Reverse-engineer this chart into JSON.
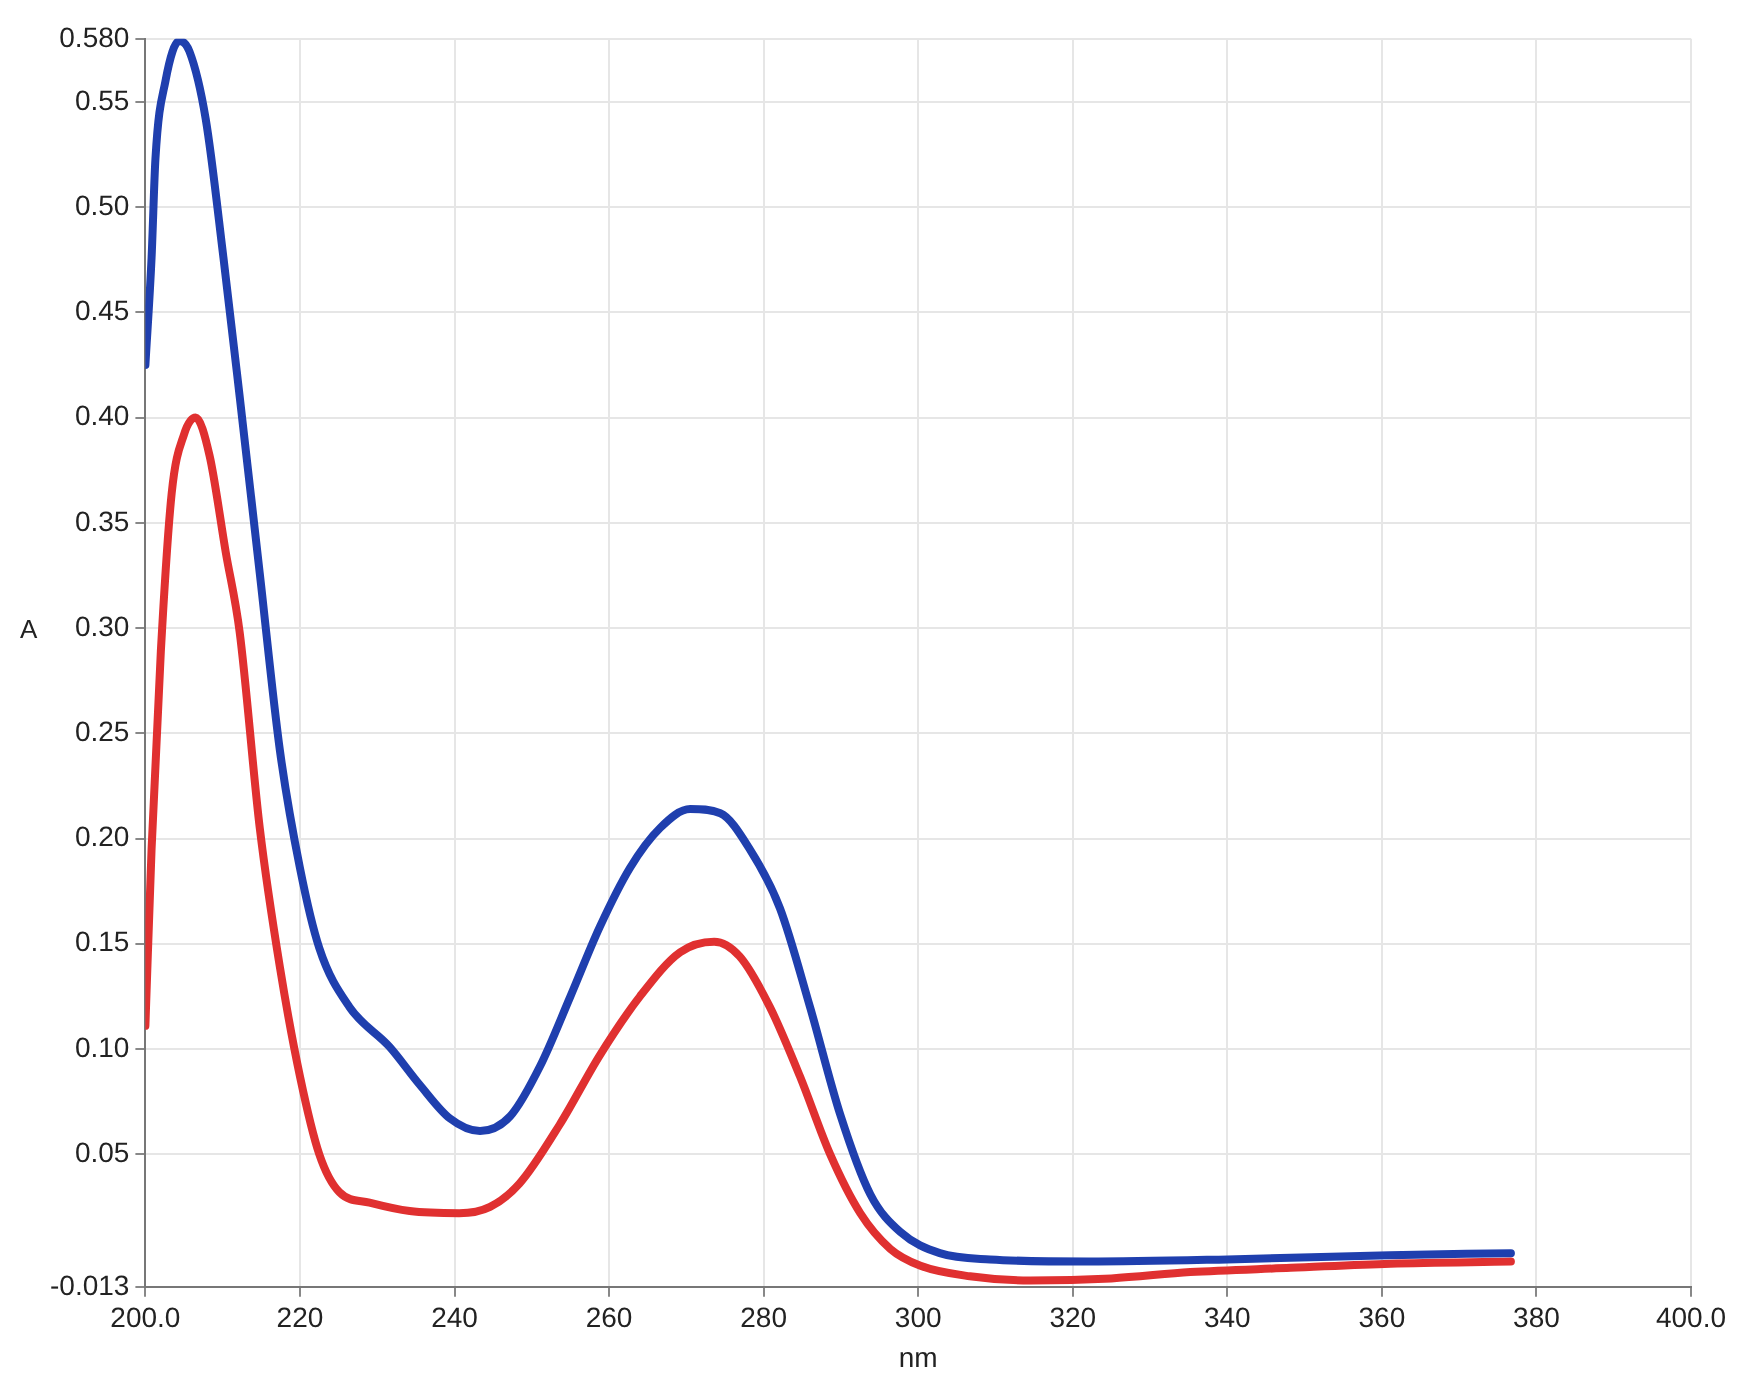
{
  "chart_data": {
    "type": "line",
    "xlabel": "nm",
    "ylabel": "A",
    "xlim": [
      200,
      400
    ],
    "xticks": [
      {
        "value": 200,
        "label": "200.0"
      },
      220,
      240,
      260,
      280,
      300,
      320,
      340,
      360,
      380,
      {
        "value": 400,
        "label": "400.0"
      }
    ],
    "ylim": [
      -0.013,
      0.58
    ],
    "yticks": [
      -0.013,
      0.05,
      {
        "value": 0.1,
        "label": "0.10"
      },
      0.15,
      {
        "value": 0.2,
        "label": "0.20"
      },
      0.25,
      {
        "value": 0.3,
        "label": "0.30"
      },
      0.35,
      {
        "value": 0.4,
        "label": "0.40"
      },
      0.45,
      {
        "value": 0.5,
        "label": "0.50"
      },
      0.55,
      {
        "value": 0.58,
        "label": "0.580"
      }
    ],
    "grid": true,
    "legend": false,
    "marker": "none",
    "line_style": "solid",
    "series": [
      {
        "color": "#1f3fae",
        "x": [
          200,
          200.8,
          201.3,
          202.6,
          204.4,
          205.7,
          207.8,
          210.1,
          212.2,
          214.8,
          217.4,
          220,
          222.5,
          226.4,
          231.6,
          235.5,
          239.4,
          243.3,
          247.2,
          251.1,
          255,
          258.8,
          262.7,
          266.6,
          270.5,
          274.4,
          278.2,
          282.1,
          286,
          289.9,
          293.8,
          297.7,
          302.8,
          309.3,
          322,
          340,
          361,
          376.7
        ],
        "values": [
          0.425,
          0.476,
          0.523,
          0.56,
          0.579,
          0.574,
          0.542,
          0.476,
          0.41,
          0.326,
          0.242,
          0.186,
          0.148,
          0.12,
          0.101,
          0.083,
          0.067,
          0.061,
          0.068,
          0.092,
          0.125,
          0.158,
          0.186,
          0.205,
          0.214,
          0.212,
          0.195,
          0.167,
          0.12,
          0.069,
          0.031,
          0.013,
          0.003,
          0,
          -0.001,
          0,
          0.002,
          0.003
        ]
      },
      {
        "color": "#e03030",
        "x": [
          200,
          200.8,
          202,
          203.4,
          205,
          206.5,
          208.3,
          210.4,
          212.2,
          214.8,
          217.4,
          220,
          222.5,
          225.1,
          229,
          234.2,
          240.6,
          244.6,
          248.4,
          253.6,
          258.8,
          264,
          269.2,
          273.6,
          276.9,
          280.8,
          284.7,
          288.6,
          292.5,
          296.4,
          300.3,
          306.7,
          314.5,
          325,
          335.2,
          348.2,
          361.1,
          376.7
        ],
        "values": [
          0.111,
          0.195,
          0.289,
          0.364,
          0.392,
          0.4,
          0.382,
          0.336,
          0.298,
          0.205,
          0.139,
          0.087,
          0.05,
          0.032,
          0.027,
          0.023,
          0.022,
          0.025,
          0.036,
          0.064,
          0.097,
          0.125,
          0.146,
          0.151,
          0.144,
          0.12,
          0.087,
          0.05,
          0.022,
          0.005,
          -0.003,
          -0.008,
          -0.01,
          -0.009,
          -0.006,
          -0.004,
          -0.002,
          -0.001
        ]
      }
    ]
  }
}
